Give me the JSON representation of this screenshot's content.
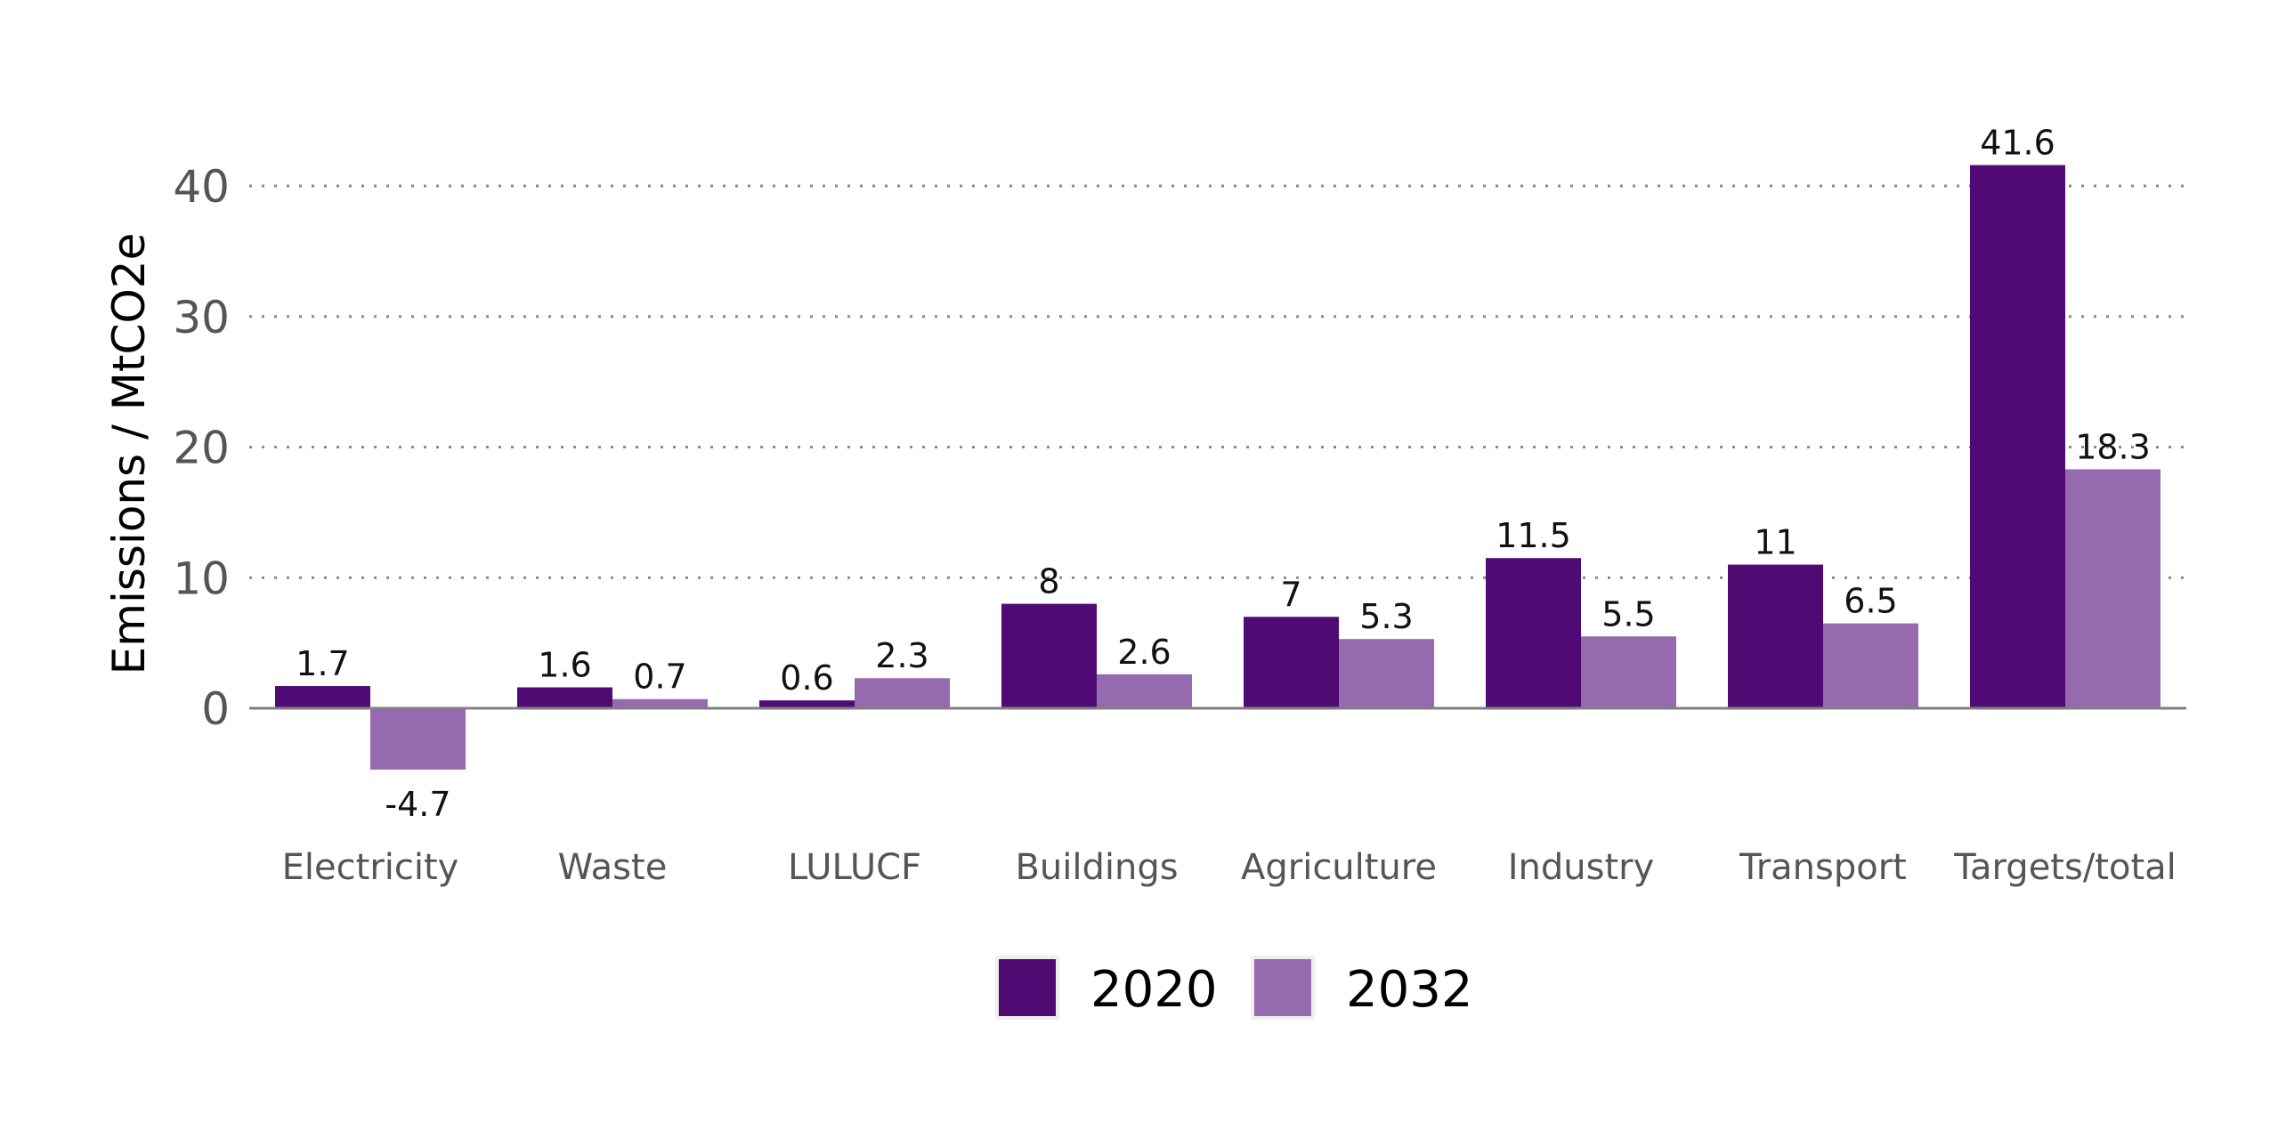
{
  "chart_data": {
    "type": "bar",
    "ylabel": "Emissions / MtCO2e",
    "xlabel": "",
    "ylim": [
      -6,
      45
    ],
    "yticks": [
      0,
      10,
      20,
      30,
      40
    ],
    "grid": "horizontal dotted",
    "legend_placement": "bottom",
    "categories": [
      "Electricity",
      "Waste",
      "LULUCF",
      "Buildings",
      "Agriculture",
      "Industry",
      "Transport",
      "Targets/total"
    ],
    "series": [
      {
        "name": "2020",
        "color": "#4f0a73",
        "values": [
          1.7,
          1.6,
          0.6,
          8,
          7,
          11.5,
          11,
          41.6
        ]
      },
      {
        "name": "2032",
        "color": "#966aae",
        "values": [
          -4.7,
          0.7,
          2.3,
          2.6,
          5.3,
          5.5,
          6.5,
          18.3
        ]
      }
    ]
  }
}
